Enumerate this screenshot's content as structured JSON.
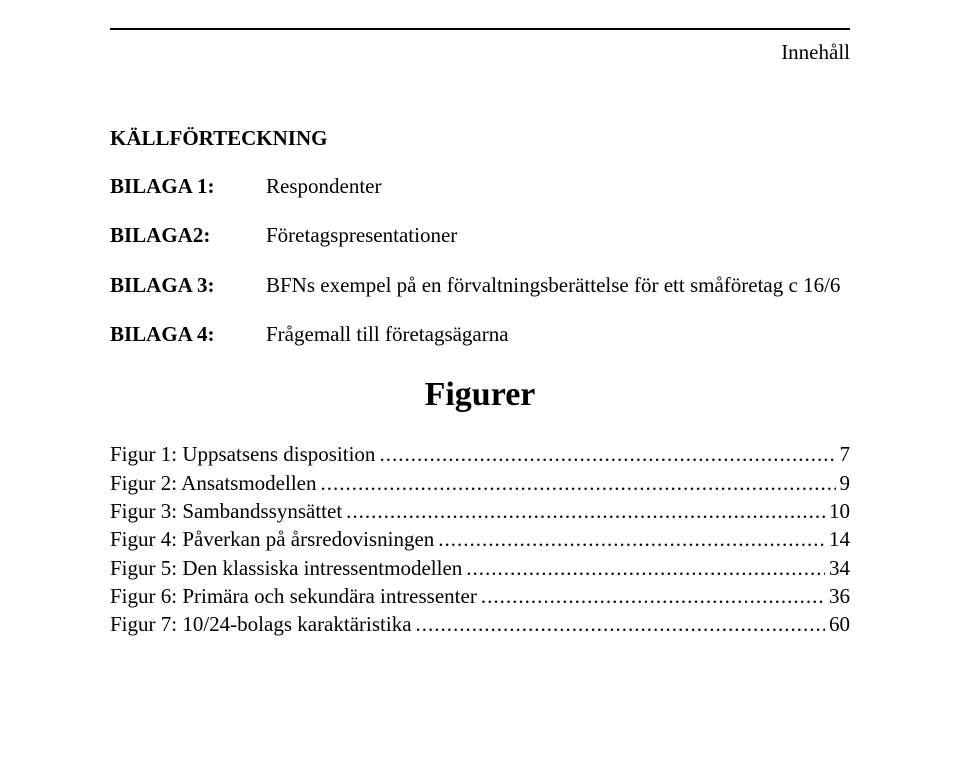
{
  "header": {
    "label": "Innehåll"
  },
  "sections": {
    "kallforteckning_title": "KÄLLFÖRTECKNING",
    "bilaga": [
      {
        "label": "BILAGA 1:",
        "value": "Respondenter"
      },
      {
        "label": "BILAGA2:",
        "value": "Företagspresentationer"
      },
      {
        "label": "BILAGA 3:",
        "value": "BFNs exempel på en förvaltningsberättelse för ett småföretag c 16/6"
      },
      {
        "label": "BILAGA 4:",
        "value": "Frågemall till företagsägarna"
      }
    ]
  },
  "figurer": {
    "title": "Figurer",
    "entries": [
      {
        "label": "Figur 1: Uppsatsens disposition",
        "page": "7"
      },
      {
        "label": "Figur 2: Ansatsmodellen",
        "page": "9"
      },
      {
        "label": "Figur 3: Sambandssynsättet",
        "page": "10"
      },
      {
        "label": "Figur 4: Påverkan på årsredovisningen",
        "page": "14"
      },
      {
        "label": "Figur 5: Den klassiska intressentmodellen",
        "page": "34"
      },
      {
        "label": "Figur 6: Primära och sekundära intressenter",
        "page": "36"
      },
      {
        "label": "Figur 7: 10/24-bolags karaktäristika",
        "page": "60"
      }
    ]
  }
}
